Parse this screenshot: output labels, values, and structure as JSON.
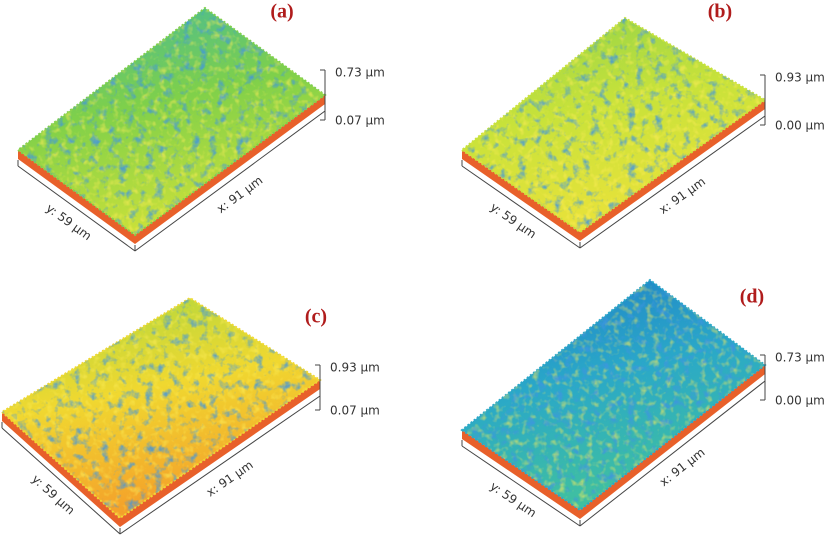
{
  "panels": [
    {
      "label": "(a)",
      "z_max": "0.73 µm",
      "z_min": "0.07 µm",
      "x_axis": "x: 91 µm",
      "y_axis": "y: 59 µm"
    },
    {
      "label": "(b)",
      "z_max": "0.93 µm",
      "z_min": "0.00 µm",
      "x_axis": "x: 91 µm",
      "y_axis": "y: 59 µm"
    },
    {
      "label": "(c)",
      "z_max": "0.93 µm",
      "z_min": "0.07 µm",
      "x_axis": "x: 91 µm",
      "y_axis": "y: 59 µm"
    },
    {
      "label": "(d)",
      "z_max": "0.73 µm",
      "z_min": "0.00 µm",
      "x_axis": "x: 91 µm",
      "y_axis": "y: 59 µm"
    }
  ]
}
